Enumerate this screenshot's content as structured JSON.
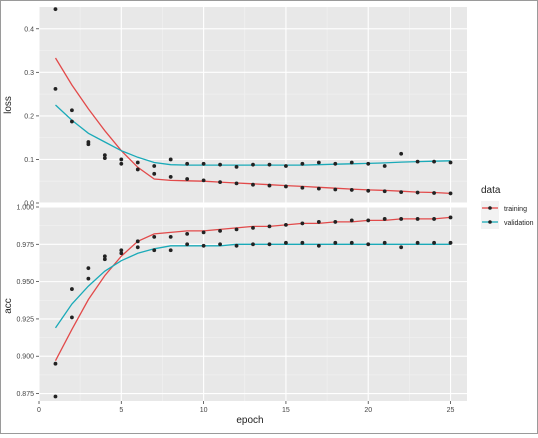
{
  "chart_data": [
    {
      "type": "scatter",
      "ylabel": "loss",
      "ylim": [
        0.0,
        0.45
      ],
      "yticks": [
        0.0,
        0.1,
        0.2,
        0.3,
        0.4
      ],
      "ytick_labels": [
        "0.0",
        "0.1",
        "0.2",
        "0.3",
        "0.4"
      ],
      "x": [
        1,
        2,
        3,
        4,
        5,
        6,
        7,
        8,
        9,
        10,
        11,
        12,
        13,
        14,
        15,
        16,
        17,
        18,
        19,
        20,
        21,
        22,
        23,
        24,
        25
      ],
      "series": [
        {
          "name": "training",
          "values": [
            0.445,
            0.213,
            0.135,
            0.103,
            0.09,
            0.077,
            0.067,
            0.06,
            0.055,
            0.052,
            0.048,
            0.045,
            0.042,
            0.04,
            0.038,
            0.035,
            0.033,
            0.031,
            0.03,
            0.028,
            0.027,
            0.025,
            0.024,
            0.023,
            0.022
          ],
          "smooth": [
            0.333,
            0.271,
            0.216,
            0.166,
            0.12,
            0.082,
            0.055,
            0.052,
            0.051,
            0.05,
            0.048,
            0.046,
            0.044,
            0.042,
            0.04,
            0.038,
            0.036,
            0.034,
            0.032,
            0.03,
            0.029,
            0.027,
            0.025,
            0.024,
            0.022
          ]
        },
        {
          "name": "validation",
          "values": [
            0.262,
            0.187,
            0.14,
            0.11,
            0.1,
            0.093,
            0.085,
            0.1,
            0.09,
            0.09,
            0.088,
            0.083,
            0.088,
            0.088,
            0.085,
            0.09,
            0.093,
            0.09,
            0.093,
            0.09,
            0.085,
            0.113,
            0.095,
            0.095,
            0.093
          ],
          "smooth": [
            0.225,
            0.19,
            0.16,
            0.14,
            0.12,
            0.105,
            0.093,
            0.088,
            0.087,
            0.087,
            0.087,
            0.087,
            0.087,
            0.087,
            0.087,
            0.087,
            0.088,
            0.089,
            0.09,
            0.091,
            0.092,
            0.094,
            0.095,
            0.096,
            0.097
          ]
        }
      ]
    },
    {
      "type": "scatter",
      "ylabel": "acc",
      "xlabel": "epoch",
      "ylim": [
        0.87,
        1.0
      ],
      "yticks": [
        0.875,
        0.9,
        0.925,
        0.95,
        0.975,
        1.0
      ],
      "ytick_labels": [
        "0.875",
        "0.900",
        "0.925",
        "0.950",
        "0.975",
        "1.000"
      ],
      "x": [
        1,
        2,
        3,
        4,
        5,
        6,
        7,
        8,
        9,
        10,
        11,
        12,
        13,
        14,
        15,
        16,
        17,
        18,
        19,
        20,
        21,
        22,
        23,
        24,
        25
      ],
      "series": [
        {
          "name": "training",
          "values": [
            0.873,
            0.926,
            0.952,
            0.965,
            0.971,
            0.977,
            0.98,
            0.98,
            0.982,
            0.983,
            0.984,
            0.985,
            0.986,
            0.987,
            0.988,
            0.989,
            0.99,
            0.99,
            0.991,
            0.991,
            0.992,
            0.992,
            0.992,
            0.992,
            0.993
          ],
          "smooth": [
            0.897,
            0.918,
            0.938,
            0.954,
            0.967,
            0.977,
            0.982,
            0.983,
            0.984,
            0.984,
            0.985,
            0.986,
            0.987,
            0.987,
            0.988,
            0.989,
            0.989,
            0.99,
            0.99,
            0.991,
            0.991,
            0.992,
            0.992,
            0.992,
            0.993
          ]
        },
        {
          "name": "validation",
          "values": [
            0.895,
            0.945,
            0.959,
            0.967,
            0.969,
            0.973,
            0.971,
            0.971,
            0.975,
            0.974,
            0.975,
            0.974,
            0.975,
            0.975,
            0.976,
            0.976,
            0.974,
            0.976,
            0.976,
            0.975,
            0.976,
            0.973,
            0.976,
            0.976,
            0.976
          ],
          "smooth": [
            0.919,
            0.935,
            0.947,
            0.957,
            0.964,
            0.969,
            0.972,
            0.974,
            0.974,
            0.974,
            0.974,
            0.975,
            0.975,
            0.975,
            0.975,
            0.975,
            0.975,
            0.975,
            0.975,
            0.975,
            0.975,
            0.975,
            0.975,
            0.975,
            0.975
          ]
        }
      ]
    }
  ],
  "shared_axis": {
    "xlim": [
      0,
      26
    ],
    "xticks": [
      0,
      5,
      10,
      15,
      20,
      25
    ],
    "xtick_labels": [
      "0",
      "5",
      "10",
      "15",
      "20",
      "25"
    ],
    "xlabel": "epoch"
  },
  "legend": {
    "title": "data",
    "entries": [
      "training",
      "validation"
    ],
    "position": "right"
  },
  "colors": {
    "training": "#e24a4a",
    "validation": "#1aaab8",
    "panel_bg": "#e8e8e8",
    "grid_major": "#ffffff",
    "grid_minor": "#f2f2f2",
    "points": "#222222"
  }
}
